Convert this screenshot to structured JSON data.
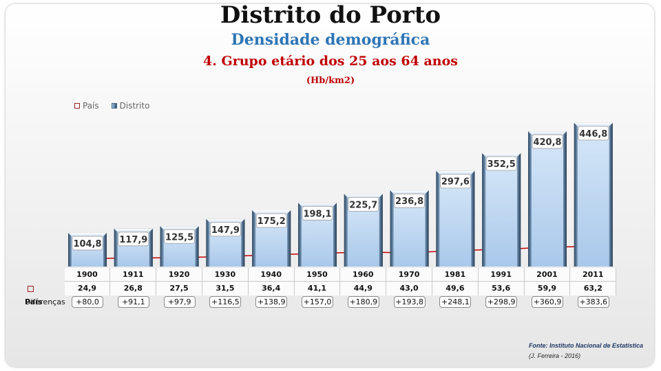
{
  "title": "Distrito do Porto",
  "subtitle": "Densidade demográfica",
  "subtitle2": "4. Grupo etário dos 25 aos 64 anos",
  "unit": "(Hb/km2)",
  "legend": {
    "pais": "País",
    "distrito": "Distrito"
  },
  "table": {
    "pais_label": "País",
    "diff_label": "Diferenças"
  },
  "source": "Fonte: Instituto Nacional de Estatística",
  "author": "(J. Ferreira - 2016)",
  "colors": {
    "distrito_bar": "#bcd6f2",
    "pais_line": "#c00000"
  },
  "chart_data": {
    "type": "bar",
    "categories": [
      "1900",
      "1911",
      "1920",
      "1930",
      "1940",
      "1950",
      "1960",
      "1970",
      "1981",
      "1991",
      "2001",
      "2011"
    ],
    "series": [
      {
        "name": "Distrito",
        "values": [
          104.8,
          117.9,
          125.5,
          147.9,
          175.2,
          198.1,
          225.7,
          236.8,
          297.6,
          352.5,
          420.8,
          446.8
        ],
        "labels": [
          "104,8",
          "117,9",
          "125,5",
          "147,9",
          "175,2",
          "198,1",
          "225,7",
          "236,8",
          "297,6",
          "352,5",
          "420,8",
          "446,8"
        ]
      },
      {
        "name": "País",
        "type": "line",
        "values": [
          24.9,
          26.8,
          27.5,
          31.5,
          36.4,
          41.1,
          44.9,
          43.0,
          49.6,
          53.6,
          59.9,
          63.2
        ],
        "labels": [
          "24,9",
          "26,8",
          "27,5",
          "31,5",
          "36,4",
          "41,1",
          "44,9",
          "43,0",
          "49,6",
          "53,6",
          "59,9",
          "63,2"
        ]
      }
    ],
    "differences": [
      "+80,0",
      "+91,1",
      "+97,9",
      "+116,5",
      "+138,9",
      "+157,0",
      "+180,9",
      "+193,8",
      "+248,1",
      "+298,9",
      "+360,9",
      "+383,6"
    ],
    "ylim": [
      0,
      450
    ]
  }
}
